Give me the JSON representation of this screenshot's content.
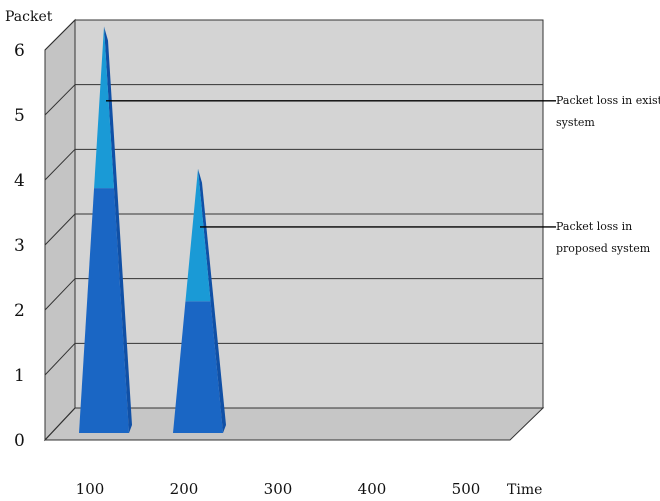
{
  "chart_data": {
    "type": "bar",
    "style": "3d-cone",
    "title": "",
    "xlabel": "Time",
    "ylabel": "Packet",
    "ylim": [
      0,
      6
    ],
    "yticks": [
      "0",
      "1",
      "2",
      "3",
      "4",
      "5",
      "6"
    ],
    "categories": [
      "100",
      "200",
      "300",
      "400",
      "500"
    ],
    "values": [
      5.9,
      3.7,
      0,
      0,
      0
    ],
    "proposed_level": [
      3.4,
      1.65,
      0,
      0,
      0
    ],
    "grid": true,
    "colors": {
      "wall": "#d4d4d4",
      "floor": "#c6c6c6",
      "cone_top": "#1a9ad6",
      "cone_bottom": "#1a66c4",
      "cone_shade": "#1050a6"
    },
    "annotations": [
      {
        "lines": [
          "Packet loss in existing",
          "system"
        ],
        "target_value": 4.75
      },
      {
        "lines": [
          "Packet loss in",
          "proposed system"
        ],
        "target_value": 2.8
      }
    ]
  }
}
